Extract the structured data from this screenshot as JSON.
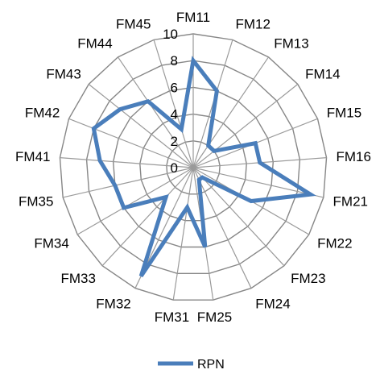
{
  "chart_data": {
    "type": "radar",
    "categories": [
      "FM11",
      "FM12",
      "FM13",
      "FM14",
      "FM15",
      "FM16",
      "FM21",
      "FM22",
      "FM23",
      "FM24",
      "FM25",
      "FM31",
      "FM32",
      "FM33",
      "FM34",
      "FM35",
      "FM41",
      "FM42",
      "FM43",
      "FM44",
      "FM45"
    ],
    "series": [
      {
        "name": "RPN",
        "values": [
          8,
          6,
          2,
          2,
          5,
          5,
          9,
          5,
          1,
          1,
          6,
          3,
          9,
          3,
          6,
          6,
          7,
          8,
          7,
          6,
          3
        ]
      }
    ],
    "ticks": [
      "0",
      "2",
      "4",
      "6",
      "8",
      "10"
    ],
    "rlim": [
      0,
      10
    ],
    "grid": true,
    "legend_position": "bottom",
    "colors": {
      "series": "#4a7ebb",
      "grid": "#878787",
      "spokes": "#9a9a9a"
    }
  }
}
